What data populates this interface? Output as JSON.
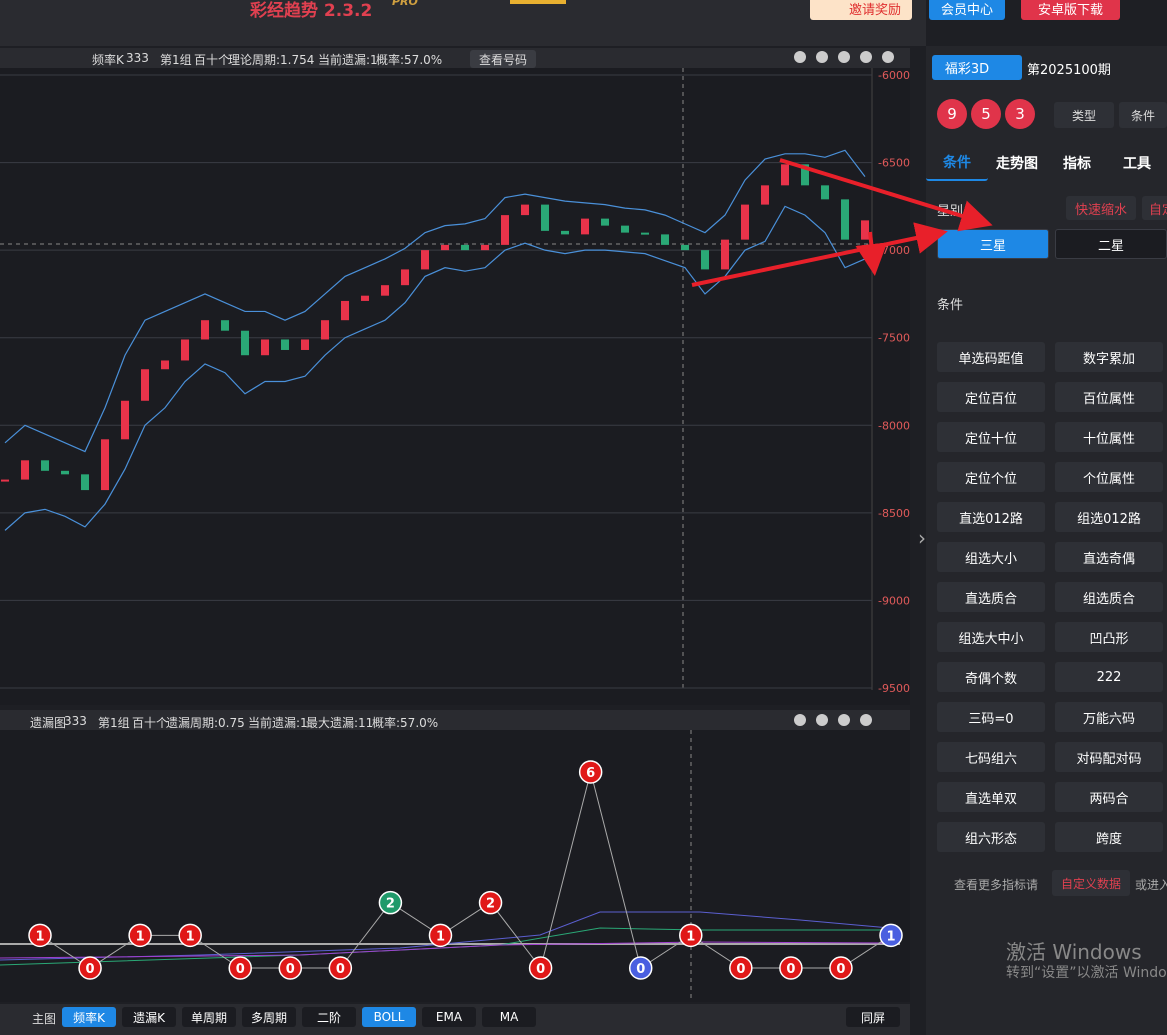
{
  "app": {
    "title": "彩经趋势 2.3.2",
    "badge": "PRO",
    "buttons": [
      "邀请奖励",
      "会员中心",
      "安卓版下载"
    ]
  },
  "main_panel": {
    "header": [
      "频率K",
      "333",
      "第1组",
      "百十个",
      "理论周期:1.754",
      "当前遗漏:1",
      "概率:57.0%"
    ],
    "button": "查看号码"
  },
  "chart_data": [
    {
      "type": "kline",
      "ylim": [
        -9500,
        -6000
      ],
      "yticks": [
        -9500,
        -9000,
        -8500,
        -8000,
        -7500,
        -7000,
        -6500,
        -6000
      ],
      "grid": true,
      "series": [
        {
          "color": "#e8334a",
          "down_color": "#2aa876",
          "values": [
            -8310,
            -8200,
            -8260,
            -8280,
            -8370,
            -8080,
            -7860,
            -7680,
            -7630,
            -7510,
            -7400,
            -7460,
            -7600,
            -7510,
            -7570,
            -7510,
            -7400,
            -7290,
            -7260,
            -7200,
            -7110,
            -7000,
            -6970,
            -7000,
            -6970,
            -6800,
            -6740,
            -6890,
            -6910,
            -6820,
            -6860,
            -6900,
            -6910,
            -6970,
            -7000,
            -7110,
            -6940,
            -6740,
            -6630,
            -6510,
            -6630,
            -6710,
            -6940,
            -6830
          ]
        },
        {
          "color": "#4a90d9",
          "values": [
            -8100,
            -8000,
            -8050,
            -8100,
            -8150,
            -7900,
            -7600,
            -7400,
            -7350,
            -7300,
            -7250,
            -7300,
            -7350,
            -7350,
            -7400,
            -7350,
            -7250,
            -7150,
            -7100,
            -7050,
            -6990,
            -6900,
            -6860,
            -6850,
            -6820,
            -6700,
            -6680,
            -6700,
            -6720,
            -6730,
            -6740,
            -6760,
            -6770,
            -6800,
            -6850,
            -6900,
            -6800,
            -6600,
            -6480,
            -6450,
            -6450,
            -6470,
            -6430,
            -6580
          ]
        },
        {
          "color": "#4a90d9",
          "values": [
            -8600,
            -8500,
            -8480,
            -8520,
            -8580,
            -8450,
            -8250,
            -8000,
            -7900,
            -7750,
            -7650,
            -7700,
            -7820,
            -7750,
            -7750,
            -7720,
            -7600,
            -7500,
            -7450,
            -7400,
            -7300,
            -7150,
            -7100,
            -7120,
            -7100,
            -7000,
            -6960,
            -7000,
            -7020,
            -7000,
            -7000,
            -7010,
            -7020,
            -7060,
            -7100,
            -7250,
            -7150,
            -7000,
            -6950,
            -6750,
            -6800,
            -6900,
            -7100,
            -7050
          ]
        }
      ]
    },
    {
      "type": "nodes",
      "ylim": [
        0,
        6
      ],
      "line_color": "#aaaaaa",
      "values": [
        1,
        0,
        1,
        1,
        0,
        0,
        0,
        2,
        1,
        2,
        0,
        6,
        0,
        1,
        0,
        0,
        0,
        1
      ],
      "colors": [
        "#e01818",
        "#e01818",
        "#e01818",
        "#e01818",
        "#e01818",
        "#e01818",
        "#e01818",
        "#1f9a6a",
        "#e01818",
        "#e01818",
        "#e01818",
        "#e01818",
        "#4a5fe0",
        "#e01818",
        "#e01818",
        "#e01818",
        "#e01818",
        "#4a5fe0"
      ]
    }
  ],
  "miss_panel": {
    "header": [
      "遗漏图",
      "333",
      "第1组",
      "百十个",
      "遗漏周期:0.75",
      "当前遗漏:1",
      "最大遗漏:11",
      "概率:57.0%"
    ]
  },
  "toolbar": {
    "label": "主图",
    "buttons": [
      "频率K",
      "遗漏K",
      "单周期",
      "多周期",
      "二阶",
      "BOLL",
      "EMA",
      "MA"
    ],
    "active": [
      0,
      5
    ],
    "right": "同屏"
  },
  "side": {
    "lottery": "福彩3D",
    "issue": "第2025100期",
    "balls": [
      "9",
      "5",
      "3"
    ],
    "type": "类型",
    "cond": "条件",
    "tabs": [
      "条件",
      "走势图",
      "指标",
      "工具"
    ],
    "section1": "星别",
    "quick": "快速缩水",
    "custom": "自定",
    "stars": [
      "三星",
      "二星"
    ],
    "section2": "条件",
    "grid": [
      [
        "单选码距值",
        "数字累加"
      ],
      [
        "定位百位",
        "百位属性"
      ],
      [
        "定位十位",
        "十位属性"
      ],
      [
        "定位个位",
        "个位属性"
      ],
      [
        "直选012路",
        "组选012路"
      ],
      [
        "组选大小",
        "直选奇偶"
      ],
      [
        "直选质合",
        "组选质合"
      ],
      [
        "组选大中小",
        "凹凸形"
      ],
      [
        "奇偶个数",
        "222"
      ],
      [
        "三码=0",
        "万能六码"
      ],
      [
        "七码组六",
        "对码配对码"
      ],
      [
        "直选单双",
        "两码合"
      ],
      [
        "组六形态",
        "跨度"
      ]
    ],
    "footer": [
      "查看更多指标请",
      "自定义数据",
      "或进入"
    ]
  },
  "watermark": [
    "激活 Windows",
    "转到“设置”以激活 Windows"
  ]
}
